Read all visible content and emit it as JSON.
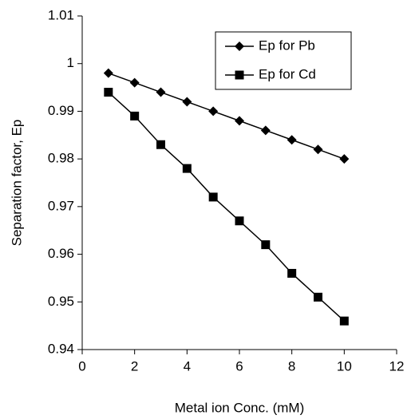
{
  "chart_data": {
    "type": "line",
    "x_label": "Metal ion Conc. (mM)",
    "y_label": "Separation factor, Ep",
    "x": [
      1,
      2,
      3,
      4,
      5,
      6,
      7,
      8,
      9,
      10
    ],
    "series": [
      {
        "name": "Ep for Pb",
        "color": "#000000",
        "marker": "diamond",
        "values": [
          0.998,
          0.996,
          0.994,
          0.992,
          0.99,
          0.988,
          0.986,
          0.984,
          0.982,
          0.98
        ]
      },
      {
        "name": "Ep for Cd",
        "color": "#000000",
        "marker": "square",
        "values": [
          0.994,
          0.989,
          0.983,
          0.978,
          0.972,
          0.967,
          0.962,
          0.956,
          0.951,
          0.946
        ]
      }
    ],
    "xlim": [
      0,
      12
    ],
    "xticks": [
      0,
      2,
      4,
      6,
      8,
      10,
      12
    ],
    "ylim": [
      0.94,
      1.01
    ],
    "yticks": [
      0.94,
      0.95,
      0.96,
      0.97,
      0.98,
      0.99,
      1,
      1.01
    ],
    "grid": false,
    "legend_position": "upper right"
  }
}
